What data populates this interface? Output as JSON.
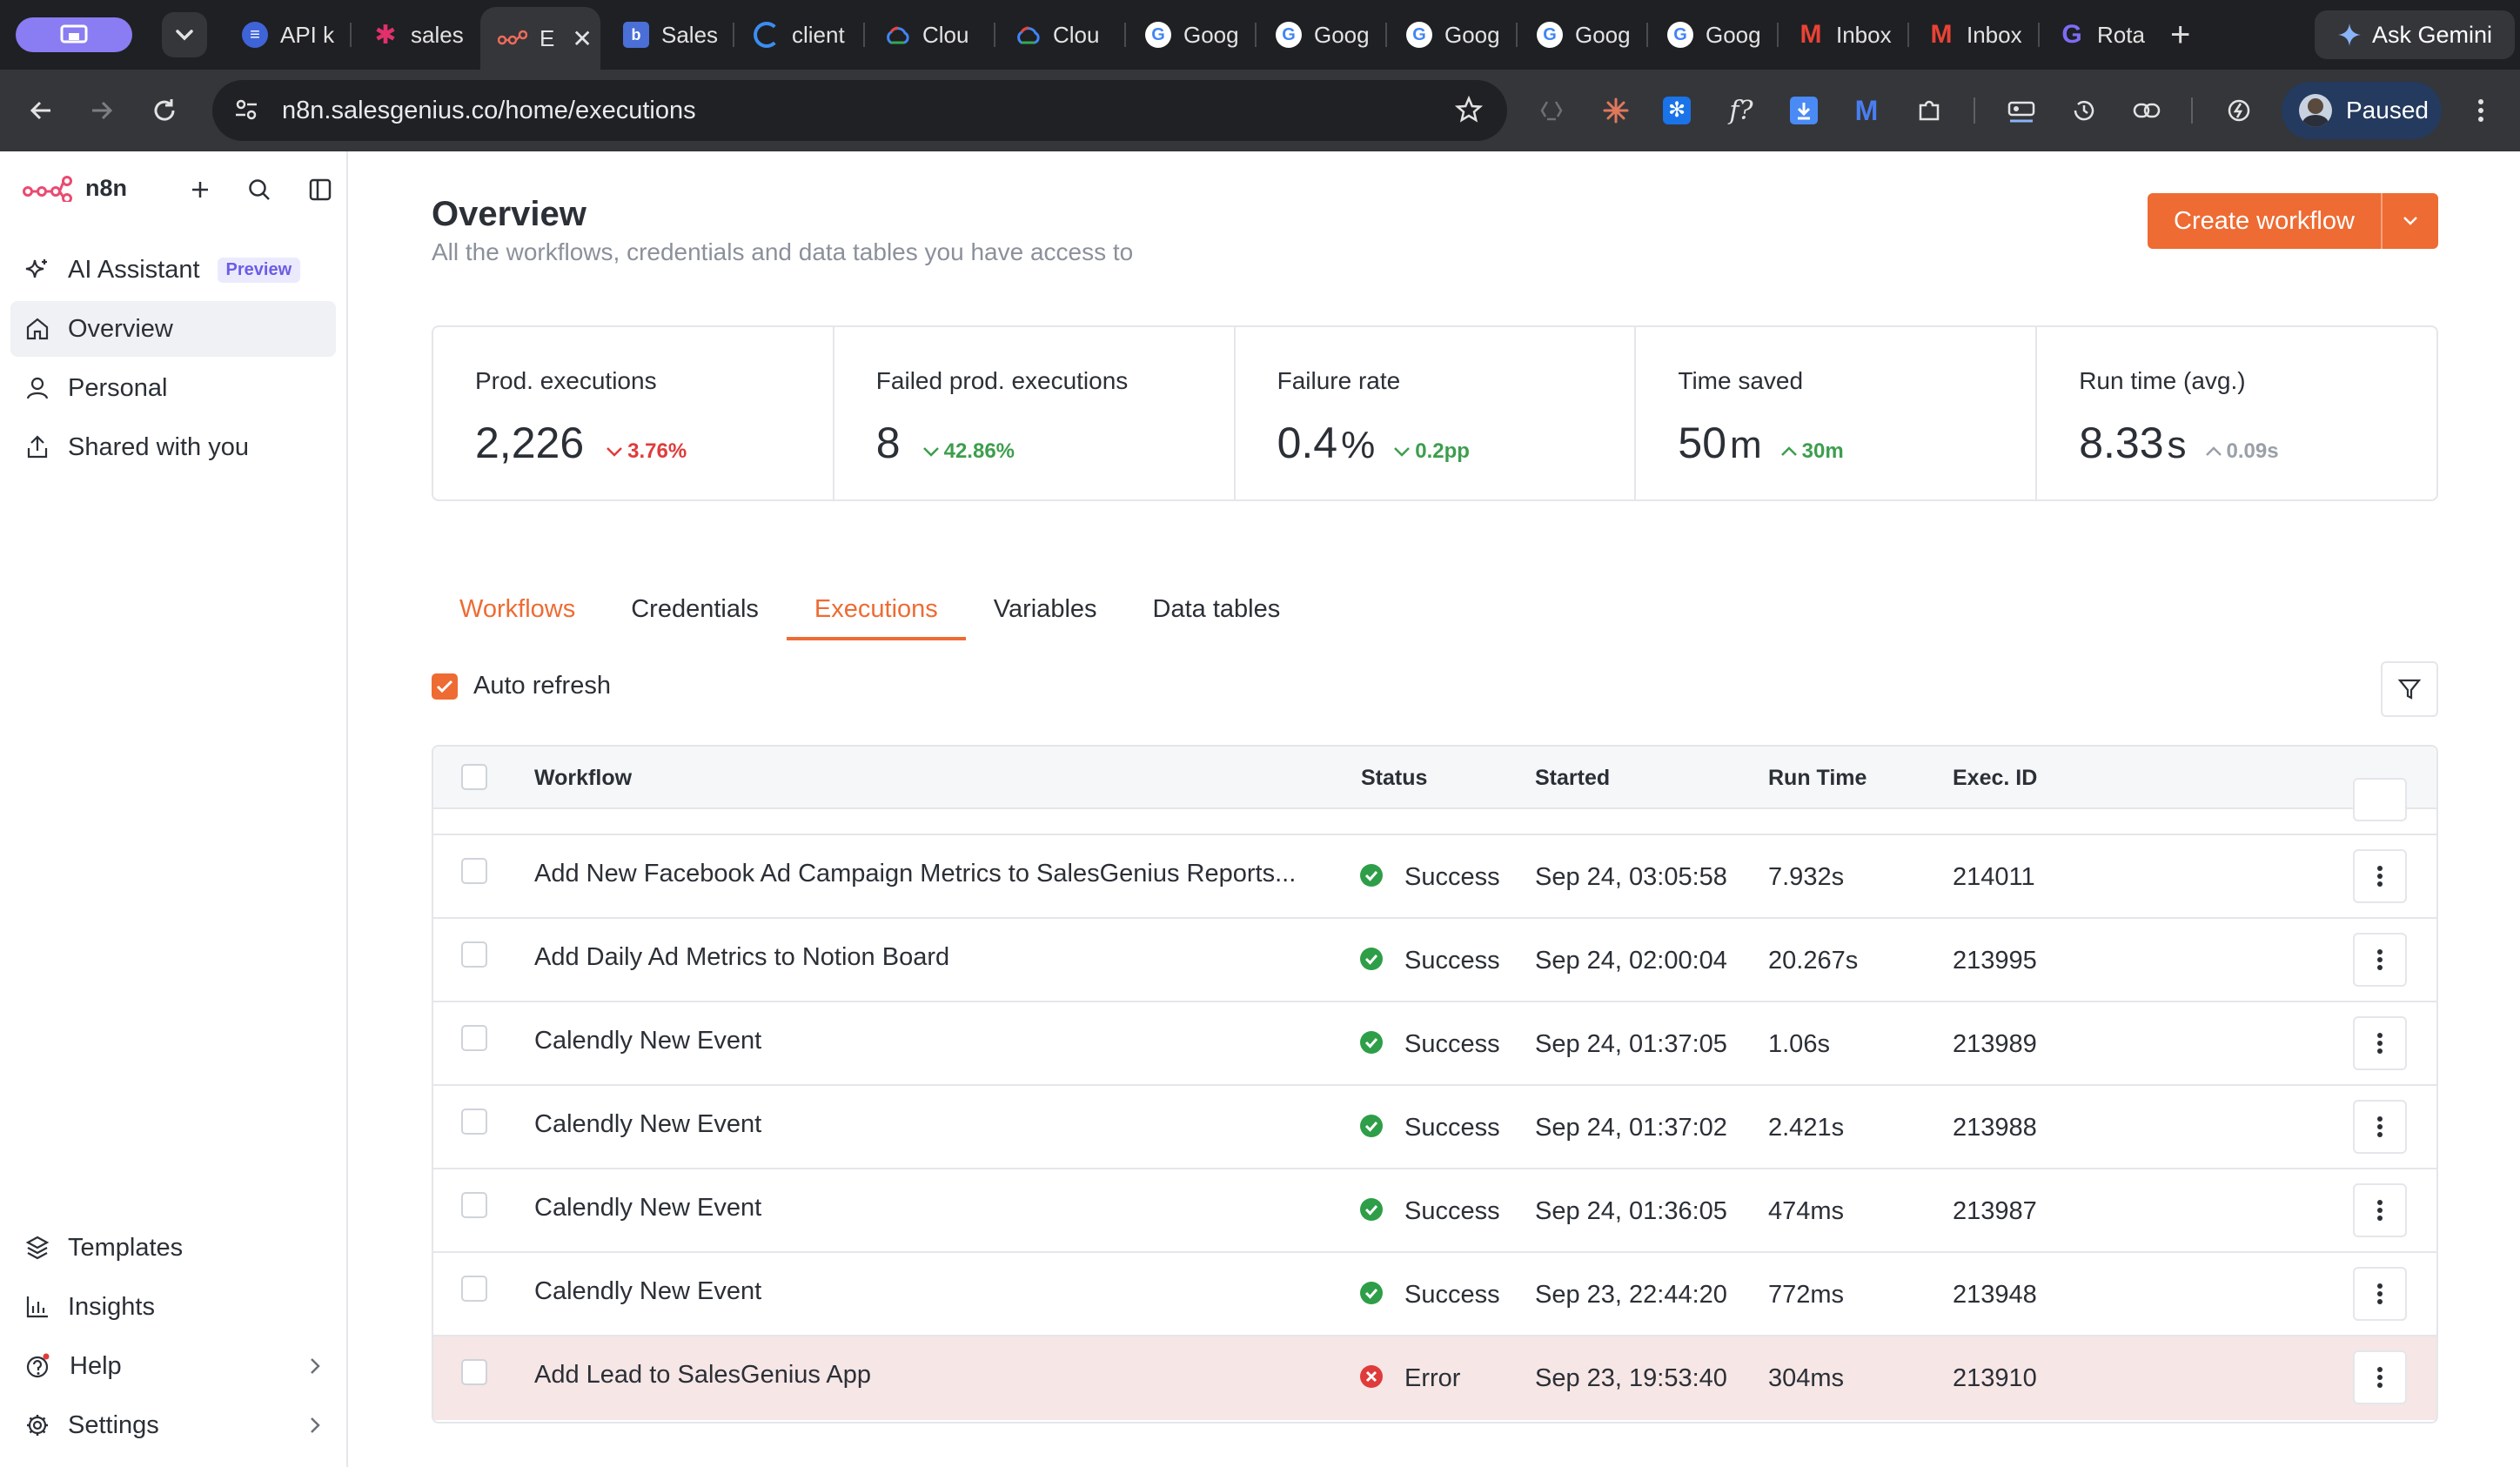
{
  "browser": {
    "tabs": [
      {
        "label": "API k",
        "icon": "stack-icon"
      },
      {
        "label": "sales",
        "icon": "asterisk-icon"
      },
      {
        "label": "E",
        "icon": "n8n-icon"
      },
      {
        "label": "Sales",
        "icon": "doc-icon"
      },
      {
        "label": "client",
        "icon": "spinner-icon"
      },
      {
        "label": "Clou",
        "icon": "cloud-icon"
      },
      {
        "label": "Clou",
        "icon": "cloud-icon"
      },
      {
        "label": "Goog",
        "icon": "google-icon"
      },
      {
        "label": "Goog",
        "icon": "google-icon"
      },
      {
        "label": "Goog",
        "icon": "google-icon"
      },
      {
        "label": "Goog",
        "icon": "google-icon"
      },
      {
        "label": "Goog",
        "icon": "google-icon"
      },
      {
        "label": "Inbox",
        "icon": "gmail-icon"
      },
      {
        "label": "Inbox",
        "icon": "gmail-icon"
      },
      {
        "label": "Rota",
        "icon": "g-icon"
      }
    ],
    "gemini_label": "Ask Gemini",
    "url": "n8n.salesgenius.co/home/executions",
    "profile_status": "Paused"
  },
  "sidebar": {
    "brand": "n8n",
    "items": [
      {
        "label": "AI Assistant",
        "badge": "Preview"
      },
      {
        "label": "Overview"
      },
      {
        "label": "Personal"
      },
      {
        "label": "Shared with you"
      }
    ],
    "bottom_items": [
      {
        "label": "Templates"
      },
      {
        "label": "Insights"
      },
      {
        "label": "Help"
      },
      {
        "label": "Settings"
      }
    ]
  },
  "header": {
    "title": "Overview",
    "subtitle": "All the workflows, credentials and data tables you have access to",
    "create_button": "Create workflow"
  },
  "stats": [
    {
      "label": "Prod. executions",
      "value": "2,226",
      "unit": "",
      "delta": "3.76%",
      "direction": "down",
      "tone": "red"
    },
    {
      "label": "Failed prod. executions",
      "value": "8",
      "unit": "",
      "delta": "42.86%",
      "direction": "down",
      "tone": "green"
    },
    {
      "label": "Failure rate",
      "value": "0.4",
      "unit": "%",
      "delta": "0.2pp",
      "direction": "down",
      "tone": "green"
    },
    {
      "label": "Time saved",
      "value": "50",
      "unit": "m",
      "delta": "30m",
      "direction": "up",
      "tone": "green"
    },
    {
      "label": "Run time (avg.)",
      "value": "8.33",
      "unit": "s",
      "delta": "0.09s",
      "direction": "up",
      "tone": "gray"
    }
  ],
  "tabs": [
    "Workflows",
    "Credentials",
    "Executions",
    "Variables",
    "Data tables"
  ],
  "selected_tab": "Executions",
  "auto_refresh": {
    "label": "Auto refresh",
    "checked": true
  },
  "table": {
    "columns": [
      "Workflow",
      "Status",
      "Started",
      "Run Time",
      "Exec. ID"
    ],
    "rows": [
      {
        "workflow": "Add New Facebook Ad Campaign Metrics to SalesGenius Reports...",
        "status": "Success",
        "started": "Sep 24, 03:05:58",
        "run_time": "7.932s",
        "exec_id": "214011"
      },
      {
        "workflow": "Add Daily Ad Metrics to Notion Board",
        "status": "Success",
        "started": "Sep 24, 02:00:04",
        "run_time": "20.267s",
        "exec_id": "213995"
      },
      {
        "workflow": "Calendly New Event",
        "status": "Success",
        "started": "Sep 24, 01:37:05",
        "run_time": "1.06s",
        "exec_id": "213989"
      },
      {
        "workflow": "Calendly New Event",
        "status": "Success",
        "started": "Sep 24, 01:37:02",
        "run_time": "2.421s",
        "exec_id": "213988"
      },
      {
        "workflow": "Calendly New Event",
        "status": "Success",
        "started": "Sep 24, 01:36:05",
        "run_time": "474ms",
        "exec_id": "213987"
      },
      {
        "workflow": "Calendly New Event",
        "status": "Success",
        "started": "Sep 23, 22:44:20",
        "run_time": "772ms",
        "exec_id": "213948"
      },
      {
        "workflow": "Add Lead to SalesGenius App",
        "status": "Error",
        "started": "Sep 23, 19:53:40",
        "run_time": "304ms",
        "exec_id": "213910"
      }
    ]
  },
  "colors": {
    "accent": "#ee6b33",
    "success": "#2e9e48",
    "error": "#e03b3b",
    "sidebar_badge": "#6c5ce7"
  }
}
